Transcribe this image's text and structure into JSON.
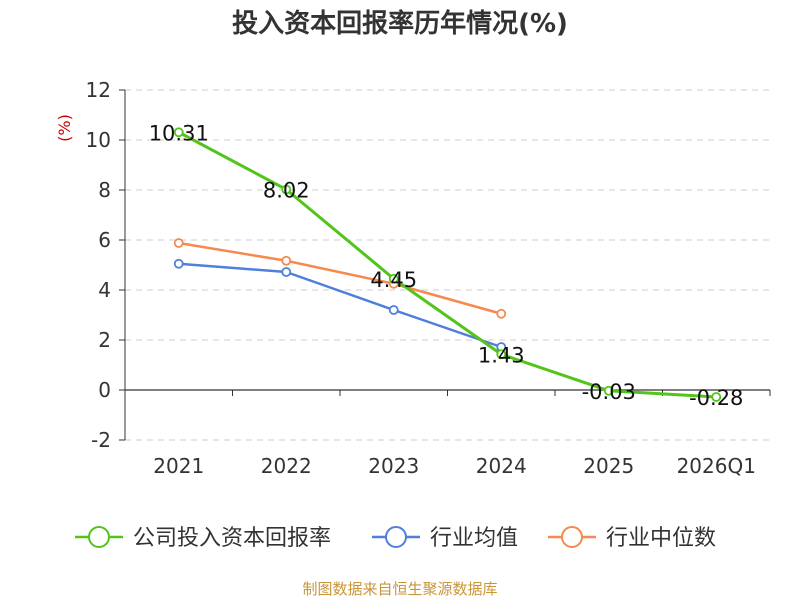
{
  "chart_data": {
    "type": "line",
    "title": "投入资本回报率历年情况(%)",
    "ylabel": "(%)",
    "categories": [
      "2021",
      "2022",
      "2023",
      "2024",
      "2025",
      "2026Q1"
    ],
    "yticks": [
      12,
      10,
      8,
      6,
      4,
      2,
      0,
      -2
    ],
    "ylim": [
      -2,
      12
    ],
    "grid": true,
    "legend_position": "bottom",
    "series": [
      {
        "name": "公司投入资本回报率",
        "color": "#52c41a",
        "values": [
          10.31,
          8.02,
          4.45,
          1.43,
          -0.03,
          -0.28
        ],
        "labels": [
          "10.31",
          "8.02",
          "4.45",
          "1.43",
          "-0.03",
          "-0.28"
        ]
      },
      {
        "name": "行业均值",
        "color": "#4e7fdb",
        "values": [
          5.05,
          4.72,
          3.2,
          1.72,
          null,
          null
        ]
      },
      {
        "name": "行业中位数",
        "color": "#f5894f",
        "values": [
          5.88,
          5.17,
          4.25,
          3.05,
          null,
          null
        ]
      }
    ]
  },
  "source": "制图数据来自恒生聚源数据库"
}
